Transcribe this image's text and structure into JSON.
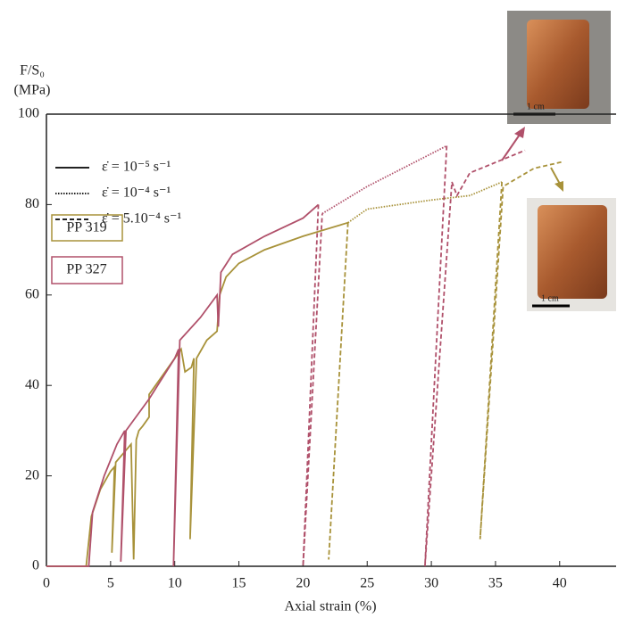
{
  "chart_data": {
    "type": "line",
    "y_label": [
      "F/S₀",
      "(MPa)"
    ],
    "x_label": "Axial strain (%)",
    "xlim": [
      0,
      44.4
    ],
    "ylim": [
      0,
      100
    ],
    "xticks": [
      0,
      5,
      10,
      15,
      20,
      25,
      30,
      35,
      40
    ],
    "yticks": [
      0,
      20,
      40,
      60,
      80,
      100
    ],
    "style_legend": [
      {
        "label": "ε̇ = 10⁻⁵ s⁻¹",
        "dash": "solid"
      },
      {
        "label": "ε̇ = 10⁻⁴ s⁻¹",
        "dash": "dotted"
      },
      {
        "label": "ε̇ = 5.10⁻⁴ s⁻¹",
        "dash": "dashed"
      }
    ],
    "series": [
      {
        "name": "PP 319",
        "color": "#a8923a",
        "segments": [
          {
            "dash": "solid",
            "x": [
              0,
              3.1,
              3.5,
              4.2,
              5.0,
              5.3,
              5.1,
              5.4,
              6.0,
              6.6,
              6.8,
              7.0,
              7.2,
              7.5,
              8.0,
              8.0,
              9.0,
              10.0,
              10.5,
              10.8,
              11.3,
              11.5,
              11.2,
              11.7,
              12.5,
              13.3,
              13.5,
              14.0,
              15.0,
              17.0,
              20.0,
              23.5
            ],
            "values": [
              0,
              0,
              11,
              17,
              21,
              22,
              3,
              23,
              25,
              27,
              1.5,
              28,
              30,
              31,
              33,
              38,
              42,
              46,
              48,
              43,
              44,
              46,
              6,
              46,
              50,
              52,
              60,
              64,
              67,
              70,
              73,
              76
            ]
          },
          {
            "dash": "dashed",
            "x": [
              23.5,
              22.0,
              23.5
            ],
            "values": [
              76,
              1.5,
              76
            ]
          },
          {
            "dash": "dotted",
            "x": [
              23.5,
              25.0,
              30.0,
              33.0,
              35.5
            ],
            "values": [
              76,
              79,
              81,
              82,
              85
            ]
          },
          {
            "dash": "dashed",
            "x": [
              35.5,
              33.8,
              35.6,
              38.0,
              40.3
            ],
            "values": [
              85,
              6,
              84,
              88,
              89.5
            ]
          }
        ]
      },
      {
        "name": "PP 327",
        "color": "#b0506a",
        "segments": [
          {
            "dash": "solid",
            "x": [
              0,
              3.3,
              3.6,
              4.5,
              5.5,
              6.1,
              5.8,
              6.2,
              8.0,
              10.0,
              10.3,
              9.9,
              10.4,
              12.0,
              13.3,
              13.4,
              13.6,
              14.5,
              17.0,
              20.0,
              21.2
            ],
            "values": [
              0,
              0,
              12,
              20,
              27,
              30,
              1,
              30,
              37,
              46,
              48,
              0,
              50,
              55,
              60,
              53,
              65,
              69,
              73,
              77,
              80
            ]
          },
          {
            "dash": "dashed",
            "x": [
              21.2,
              20.0,
              21.5
            ],
            "values": [
              80,
              0,
              78
            ]
          },
          {
            "dash": "dotted",
            "x": [
              21.5,
              25.0,
              31.2
            ],
            "values": [
              78,
              84,
              93
            ]
          },
          {
            "dash": "dashed",
            "x": [
              31.2,
              29.5,
              31.6,
              32.0,
              33.0,
              37.3
            ],
            "values": [
              93,
              0,
              85,
              82,
              87,
              92
            ]
          }
        ]
      }
    ],
    "photo_scale_labels": [
      "1 cm",
      "1 cm"
    ]
  }
}
